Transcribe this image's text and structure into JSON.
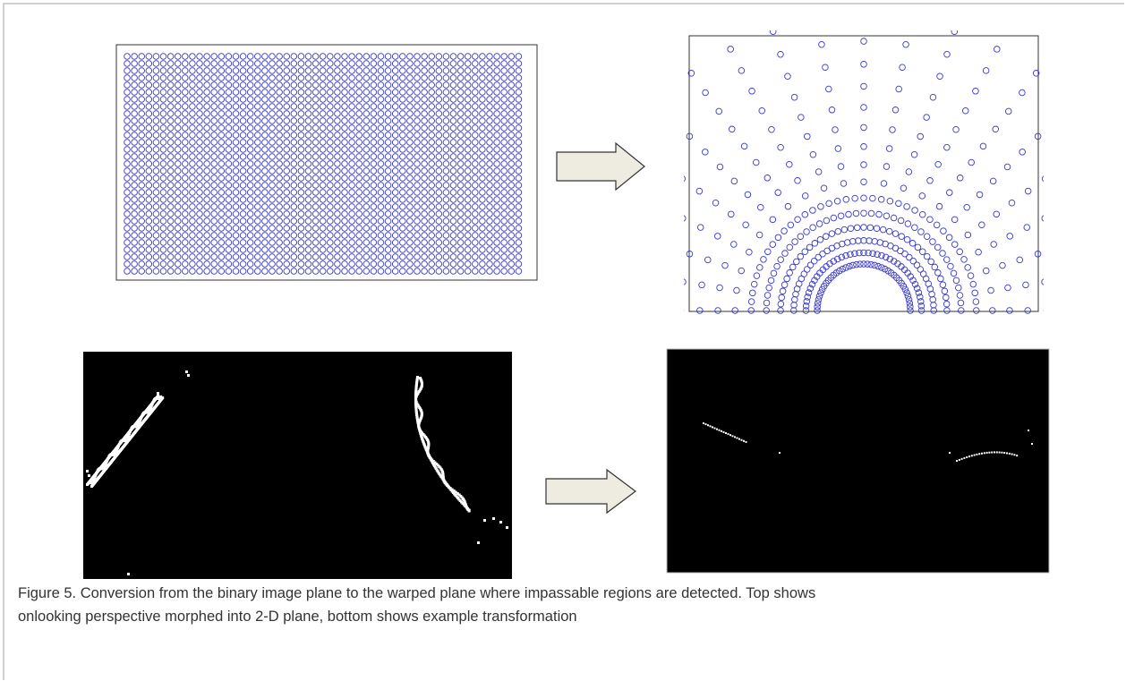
{
  "figure": {
    "caption": [
      "Figure 5. Conversion from the binary image plane to the warped plane where impassable regions are detected. Top shows",
      "onlooking perspective morphed into 2-D plane, bottom shows example transformation"
    ]
  }
}
